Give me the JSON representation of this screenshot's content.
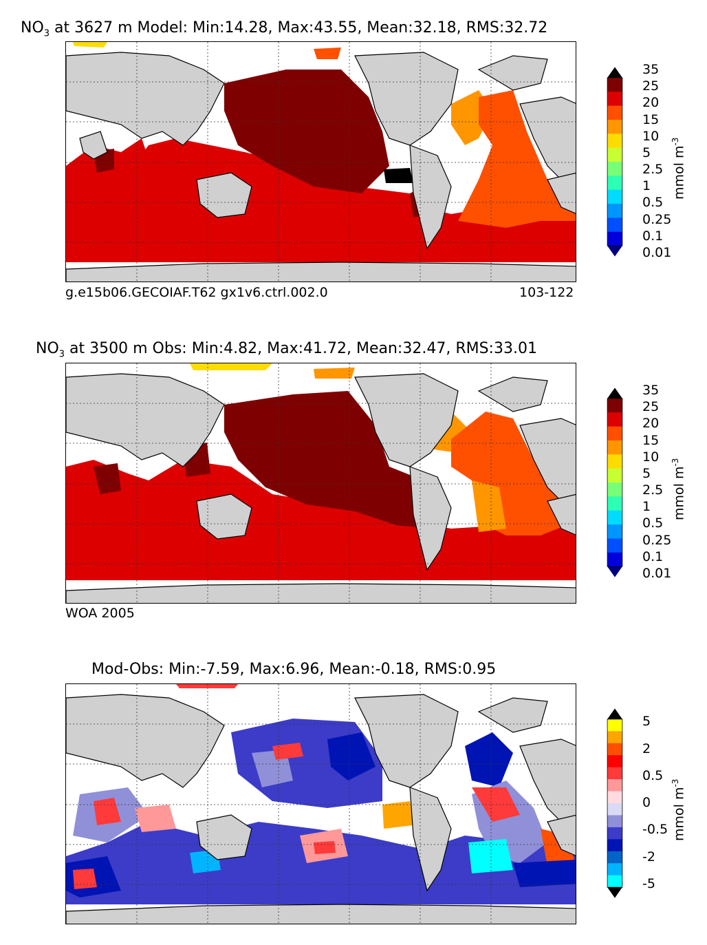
{
  "panels": [
    {
      "id": "model",
      "title_species": "NO",
      "title_sub": "3",
      "title_rest": " at 3627 m Model: Min:14.28, Max:43.55, Mean:32.18, RMS:32.72",
      "caption_left": "g.e15b06.GECOIAF.T62 gx1v6.ctrl.002.0",
      "caption_right": "103-122",
      "unit": "mmol m",
      "unit_exp": "-3",
      "colorbar_labels": [
        "35",
        "25",
        "20",
        "15",
        "10",
        "5",
        "2.5",
        "1",
        "0.5",
        "0.25",
        "0.1",
        "0.01"
      ],
      "colorbar_colors": [
        "#000000",
        "#7f0000",
        "#dc0000",
        "#ff5000",
        "#ff9600",
        "#ffdc00",
        "#c8ff32",
        "#78ff78",
        "#2dffb4",
        "#00dcff",
        "#0096ff",
        "#0050ff",
        "#0000dc",
        "#00007f"
      ]
    },
    {
      "id": "obs",
      "title_species": "NO",
      "title_sub": "3",
      "title_rest": " at 3500 m Obs: Min:4.82, Max:41.72, Mean:32.47, RMS:33.01",
      "caption_left": "WOA 2005",
      "caption_right": "",
      "unit": "mmol m",
      "unit_exp": "-3",
      "colorbar_labels": [
        "35",
        "25",
        "20",
        "15",
        "10",
        "5",
        "2.5",
        "1",
        "0.5",
        "0.25",
        "0.1",
        "0.01"
      ],
      "colorbar_colors": [
        "#000000",
        "#7f0000",
        "#dc0000",
        "#ff5000",
        "#ff9600",
        "#ffdc00",
        "#c8ff32",
        "#78ff78",
        "#2dffb4",
        "#00dcff",
        "#0096ff",
        "#0050ff",
        "#0000dc",
        "#00007f"
      ]
    },
    {
      "id": "diff",
      "title_species": "",
      "title_sub": "",
      "title_rest": "Mod-Obs: Min:-7.59, Max:6.96, Mean:-0.18, RMS:0.95",
      "caption_left": "",
      "caption_right": "",
      "unit": "mmol m",
      "unit_exp": "-3",
      "colorbar_labels": [
        "5",
        "2",
        "0.5",
        "0",
        "-0.5",
        "-2",
        "-5"
      ],
      "colorbar_colors": [
        "#000000",
        "#ffff00",
        "#ffa500",
        "#ff5000",
        "#ff0000",
        "#ff3a3a",
        "#ff9999",
        "#ffdadf",
        "#dadaf5",
        "#9090d8",
        "#3c3cc8",
        "#0014b4",
        "#0064c8",
        "#00b4ff",
        "#00ffff",
        "#000000"
      ]
    }
  ],
  "colors": {
    "land": "#d0d0d0",
    "missing": "#ffffff",
    "coast": "#000000"
  }
}
